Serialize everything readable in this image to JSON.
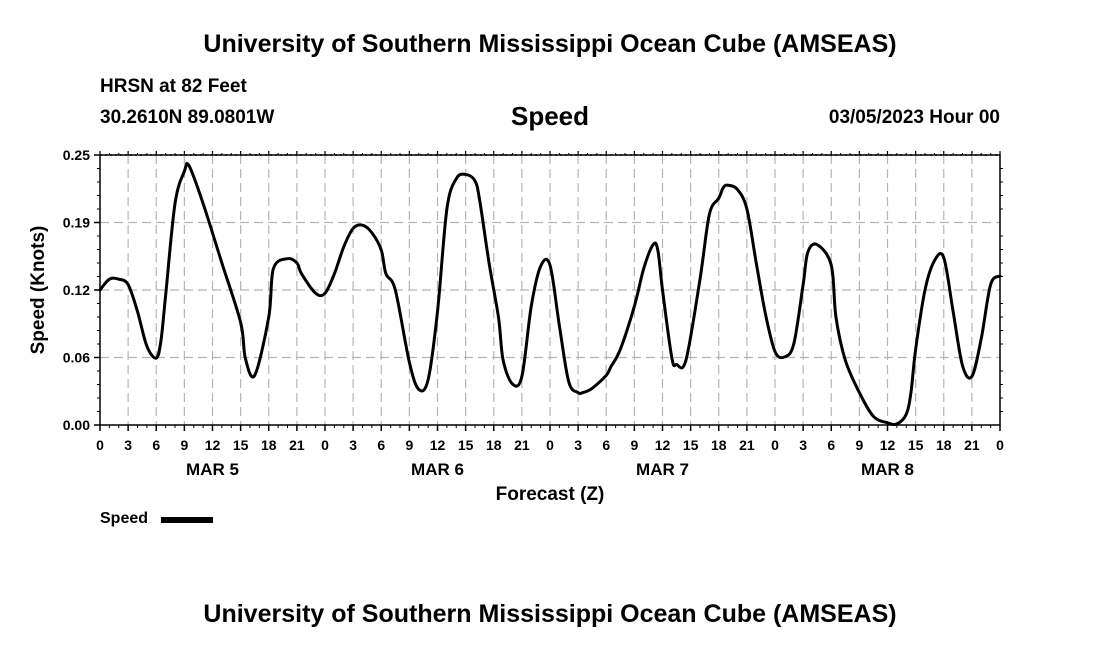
{
  "header": {
    "title_top": "University of Southern Mississippi Ocean Cube (AMSEAS)",
    "title_bottom": "University of Southern Mississippi Ocean Cube (AMSEAS)",
    "station": "HRSN at 82 Feet",
    "coords": "30.2610N  89.0801W",
    "datetime": "03/05/2023 Hour 00"
  },
  "legend": {
    "label": "Speed"
  },
  "chart_data": {
    "type": "line",
    "title": "Speed",
    "xlabel": "Forecast (Z)",
    "ylabel": "Speed (Knots)",
    "xlim": [
      0,
      96
    ],
    "ylim": [
      0,
      0.25
    ],
    "grid": true,
    "yticks": [
      "0.00",
      "0.06",
      "0.12",
      "0.19",
      "0.25"
    ],
    "xtick_labels": [
      "0",
      "3",
      "6",
      "9",
      "12",
      "15",
      "18",
      "21",
      "0",
      "3",
      "6",
      "9",
      "12",
      "15",
      "18",
      "21",
      "0",
      "3",
      "6",
      "9",
      "12",
      "15",
      "18",
      "21",
      "0",
      "3",
      "6",
      "9",
      "12",
      "15",
      "18",
      "21",
      "0"
    ],
    "day_labels": [
      "MAR 5",
      "MAR 6",
      "MAR 7",
      "MAR 8"
    ],
    "series": [
      {
        "name": "Speed",
        "x": [
          0,
          1,
          2,
          3,
          4,
          5,
          6,
          6.5,
          7,
          8,
          9,
          9.5,
          11,
          13,
          15,
          15.5,
          16.5,
          18,
          18.5,
          20,
          21,
          21.5,
          23,
          24,
          25,
          26,
          27,
          28,
          29,
          30,
          30.5,
          31.5,
          33,
          34,
          35,
          36,
          37,
          38,
          39,
          40,
          40.5,
          41.5,
          42.5,
          43,
          44,
          45,
          46,
          47,
          48,
          49,
          50,
          51,
          51.5,
          52.5,
          54,
          54.5,
          55.5,
          57,
          58,
          59,
          59.5,
          60,
          61,
          61.5,
          62.5,
          64,
          65,
          66,
          66.5,
          67,
          68,
          69,
          70,
          71,
          72,
          73,
          74,
          75,
          75.5,
          76.5,
          78,
          78.5,
          79.5,
          81,
          82.5,
          84,
          85,
          86,
          86.5,
          87,
          88,
          89,
          90,
          91,
          92,
          93,
          94,
          95,
          96
        ],
        "values": [
          0.125,
          0.135,
          0.135,
          0.13,
          0.105,
          0.073,
          0.062,
          0.078,
          0.12,
          0.205,
          0.235,
          0.24,
          0.205,
          0.15,
          0.095,
          0.062,
          0.046,
          0.1,
          0.145,
          0.154,
          0.15,
          0.14,
          0.122,
          0.122,
          0.14,
          0.165,
          0.182,
          0.185,
          0.178,
          0.162,
          0.14,
          0.125,
          0.058,
          0.033,
          0.042,
          0.105,
          0.2,
          0.228,
          0.232,
          0.226,
          0.208,
          0.15,
          0.1,
          0.06,
          0.038,
          0.045,
          0.11,
          0.147,
          0.148,
          0.092,
          0.04,
          0.03,
          0.03,
          0.034,
          0.046,
          0.054,
          0.07,
          0.11,
          0.145,
          0.167,
          0.162,
          0.125,
          0.062,
          0.056,
          0.06,
          0.135,
          0.195,
          0.21,
          0.22,
          0.222,
          0.218,
          0.2,
          0.15,
          0.102,
          0.068,
          0.063,
          0.075,
          0.13,
          0.16,
          0.167,
          0.148,
          0.1,
          0.06,
          0.03,
          0.008,
          0.002,
          0.001,
          0.01,
          0.03,
          0.07,
          0.125,
          0.152,
          0.155,
          0.105,
          0.055,
          0.045,
          0.08,
          0.13,
          0.138
        ]
      }
    ]
  }
}
